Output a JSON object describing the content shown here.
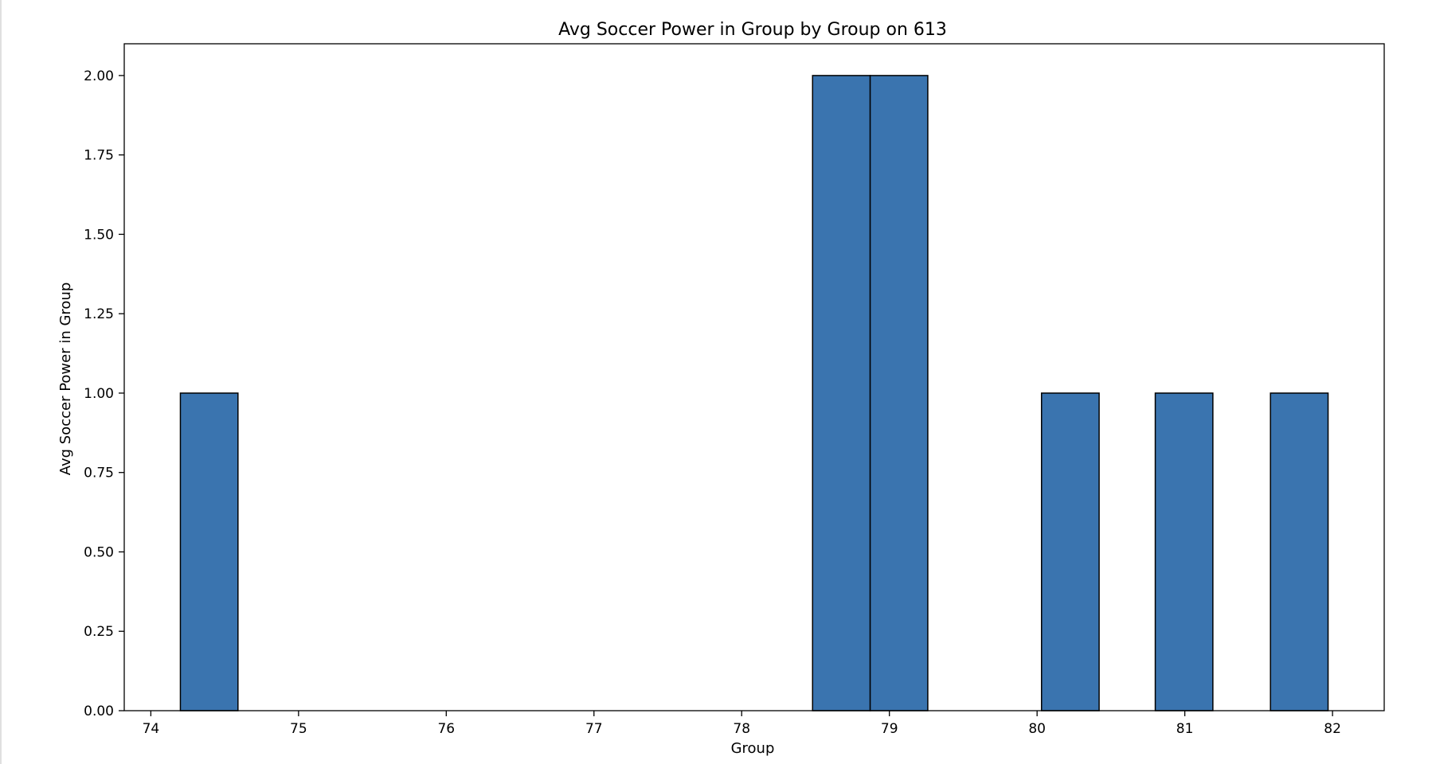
{
  "chart_data": {
    "type": "bar",
    "title": "Avg Soccer Power in Group by Group on 613",
    "xlabel": "Group",
    "ylabel": "Avg Soccer Power in Group",
    "xlim": [
      73.82,
      82.35
    ],
    "ylim": [
      0,
      2.1
    ],
    "xticks": [
      74,
      75,
      76,
      77,
      78,
      79,
      80,
      81,
      82
    ],
    "xtick_labels": [
      "74",
      "75",
      "76",
      "77",
      "78",
      "79",
      "80",
      "81",
      "82"
    ],
    "yticks": [
      0,
      0.25,
      0.5,
      0.75,
      1.0,
      1.25,
      1.5,
      1.75,
      2.0
    ],
    "ytick_labels": [
      "0.00",
      "0.25",
      "0.50",
      "0.75",
      "1.00",
      "1.25",
      "1.50",
      "1.75",
      "2.00"
    ],
    "bins": [
      {
        "x0": 74.2,
        "x1": 74.59,
        "value": 1
      },
      {
        "x0": 78.48,
        "x1": 78.87,
        "value": 2
      },
      {
        "x0": 78.87,
        "x1": 79.26,
        "value": 2
      },
      {
        "x0": 80.03,
        "x1": 80.42,
        "value": 1
      },
      {
        "x0": 80.8,
        "x1": 81.19,
        "value": 1
      },
      {
        "x0": 81.58,
        "x1": 81.97,
        "value": 1
      }
    ],
    "bar_color": "#3a74af",
    "edge_color": "#000000",
    "grid": false,
    "legend": "none"
  }
}
